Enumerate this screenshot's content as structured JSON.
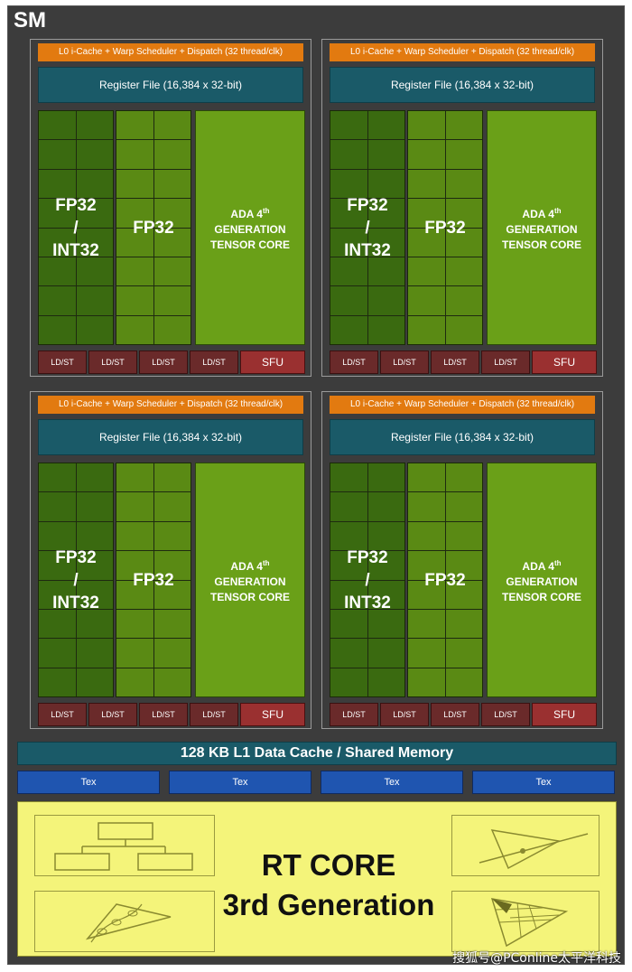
{
  "sm_title": "SM",
  "partitions": [
    {
      "l0": "L0 i-Cache + Warp Scheduler + Dispatch (32 thread/clk)",
      "register_file": "Register File (16,384 x 32-bit)",
      "fp32_int32": "FP32\n/\nINT32",
      "fp32": "FP32",
      "tensor_line1": "ADA 4",
      "tensor_sup": "th",
      "tensor_line2": "GENERATION",
      "tensor_line3": "TENSOR CORE",
      "ldst": [
        "LD/ST",
        "LD/ST",
        "LD/ST",
        "LD/ST"
      ],
      "sfu": "SFU"
    },
    {
      "l0": "L0 i-Cache + Warp Scheduler + Dispatch (32 thread/clk)",
      "register_file": "Register File (16,384 x 32-bit)",
      "fp32_int32": "FP32\n/\nINT32",
      "fp32": "FP32",
      "tensor_line1": "ADA 4",
      "tensor_sup": "th",
      "tensor_line2": "GENERATION",
      "tensor_line3": "TENSOR CORE",
      "ldst": [
        "LD/ST",
        "LD/ST",
        "LD/ST",
        "LD/ST"
      ],
      "sfu": "SFU"
    },
    {
      "l0": "L0 i-Cache + Warp Scheduler + Dispatch (32 thread/clk)",
      "register_file": "Register File (16,384 x 32-bit)",
      "fp32_int32": "FP32\n/\nINT32",
      "fp32": "FP32",
      "tensor_line1": "ADA 4",
      "tensor_sup": "th",
      "tensor_line2": "GENERATION",
      "tensor_line3": "TENSOR CORE",
      "ldst": [
        "LD/ST",
        "LD/ST",
        "LD/ST",
        "LD/ST"
      ],
      "sfu": "SFU"
    },
    {
      "l0": "L0 i-Cache + Warp Scheduler + Dispatch (32 thread/clk)",
      "register_file": "Register File (16,384 x 32-bit)",
      "fp32_int32": "FP32\n/\nINT32",
      "fp32": "FP32",
      "tensor_line1": "ADA 4",
      "tensor_sup": "th",
      "tensor_line2": "GENERATION",
      "tensor_line3": "TENSOR CORE",
      "ldst": [
        "LD/ST",
        "LD/ST",
        "LD/ST",
        "LD/ST"
      ],
      "sfu": "SFU"
    }
  ],
  "l1_cache": "128 KB L1 Data Cache / Shared Memory",
  "tex_units": [
    "Tex",
    "Tex",
    "Tex",
    "Tex"
  ],
  "rt_core": {
    "line1": "RT CORE",
    "line2": "3rd Generation"
  },
  "watermark": "搜狐号@PConline太平洋科技",
  "colors": {
    "l0": "#e27a10",
    "register_file": "#1a5a68",
    "int_cell": "#3a6a10",
    "fp32_cell": "#5a8a14",
    "tensor": "#6aa018",
    "ldst": "#6a2a2a",
    "sfu": "#9a3030",
    "tex": "#1f55b0",
    "rt_core": "#f4f47a"
  }
}
